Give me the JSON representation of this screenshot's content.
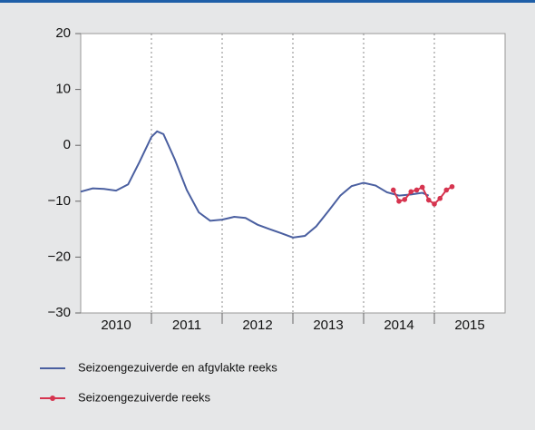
{
  "chart_data": {
    "type": "line",
    "xlim": [
      2010,
      2016
    ],
    "xticks": [
      {
        "value": 2010.5,
        "label": "2010"
      },
      {
        "value": 2011.5,
        "label": "2011"
      },
      {
        "value": 2012.5,
        "label": "2012"
      },
      {
        "value": 2013.5,
        "label": "2013"
      },
      {
        "value": 2014.5,
        "label": "2014"
      },
      {
        "value": 2015.5,
        "label": "2015"
      }
    ],
    "xgrid": [
      2011,
      2012,
      2013,
      2014,
      2015
    ],
    "ylim": [
      -30,
      20
    ],
    "yticks": [
      20,
      10,
      0,
      {
        "value": -10,
        "label": "−10"
      },
      {
        "value": -20,
        "label": "−20"
      },
      {
        "value": -30,
        "label": "−30"
      }
    ],
    "series": [
      {
        "name": "Seizoengezuiverde en afgvlakte reeks",
        "color": "#4a5fa0",
        "x": [
          2010,
          2010.17,
          2010.33,
          2010.5,
          2010.67,
          2010.83,
          2011,
          2011.08,
          2011.17,
          2011.33,
          2011.5,
          2011.67,
          2011.83,
          2012,
          2012.17,
          2012.33,
          2012.5,
          2012.67,
          2012.83,
          2013,
          2013.17,
          2013.33,
          2013.5,
          2013.67,
          2013.83,
          2014,
          2014.17,
          2014.33,
          2014.5,
          2014.67,
          2014.83,
          2014.92
        ],
        "values": [
          -8.3,
          -7.7,
          -7.8,
          -8.1,
          -7.0,
          -3.0,
          1.5,
          2.5,
          2.0,
          -2.5,
          -8.0,
          -12.0,
          -13.5,
          -13.3,
          -12.8,
          -13.0,
          -14.2,
          -15.0,
          -15.7,
          -16.5,
          -16.2,
          -14.5,
          -11.8,
          -9.0,
          -7.3,
          -6.7,
          -7.2,
          -8.4,
          -9.0,
          -8.8,
          -8.5,
          -9.0
        ]
      },
      {
        "name": "Seizoengezuiverde reeks",
        "color": "#d6344f",
        "markers": true,
        "x": [
          2014.42,
          2014.5,
          2014.58,
          2014.67,
          2014.75,
          2014.83,
          2014.92,
          2015,
          2015.08,
          2015.17,
          2015.25
        ],
        "values": [
          -8.0,
          -10.0,
          -9.7,
          -8.3,
          -8.0,
          -7.5,
          -9.8,
          -10.5,
          -9.5,
          -8.0,
          -7.4
        ]
      }
    ]
  }
}
